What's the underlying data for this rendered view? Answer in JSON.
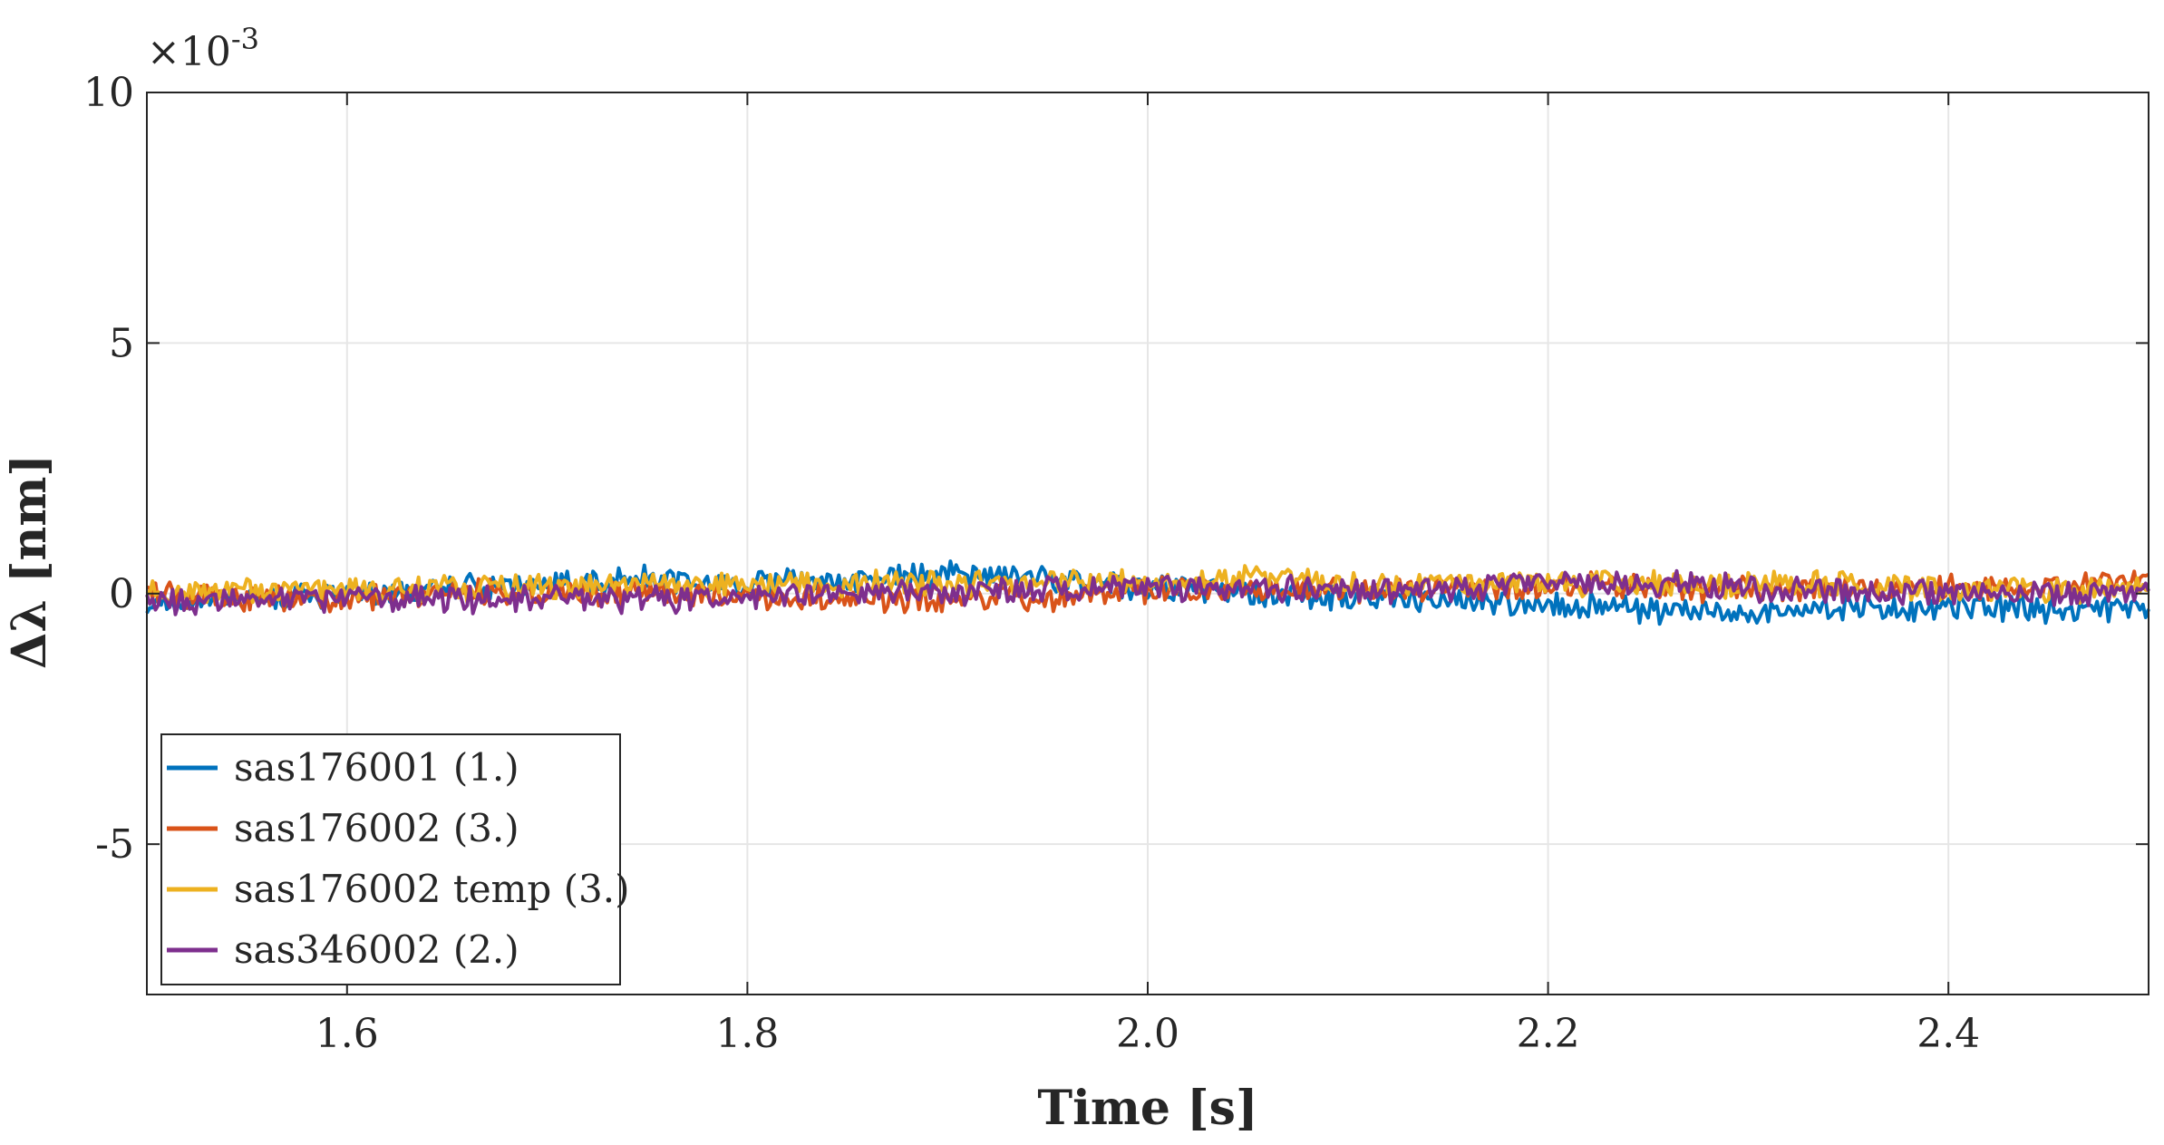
{
  "chart_data": {
    "type": "line",
    "title": "",
    "xlabel": "Time [s]",
    "ylabel": "Δλ [nm]",
    "xlim": [
      1.5,
      2.5
    ],
    "ylim": [
      -8,
      10
    ],
    "y_exponent_label": "×10",
    "y_exponent_power": "-3",
    "x_ticks": [
      1.6,
      1.8,
      2.0,
      2.2,
      2.4
    ],
    "x_tick_labels": [
      "1.6",
      "1.8",
      "2.0",
      "2.2",
      "2.4"
    ],
    "y_ticks": [
      -5,
      0,
      5,
      10
    ],
    "y_tick_labels": [
      "-5",
      "0",
      "5",
      "10"
    ],
    "grid": true,
    "legend_position": "bottom-left",
    "series": [
      {
        "name": "sas176001 (1.)",
        "color": "#0072BD",
        "x": [
          1.5,
          1.55,
          1.6,
          1.65,
          1.7,
          1.75,
          1.8,
          1.85,
          1.9,
          1.95,
          2.0,
          2.05,
          2.1,
          2.15,
          2.2,
          2.25,
          2.3,
          2.35,
          2.4,
          2.45,
          2.5
        ],
        "y": [
          -0.2,
          -0.1,
          0.0,
          0.1,
          0.2,
          0.3,
          0.2,
          0.3,
          0.4,
          0.3,
          0.1,
          0.0,
          -0.1,
          -0.1,
          -0.2,
          -0.3,
          -0.4,
          -0.3,
          -0.3,
          -0.3,
          -0.3
        ]
      },
      {
        "name": "sas176002 (3.)",
        "color": "#D95319",
        "x": [
          1.5,
          1.55,
          1.6,
          1.65,
          1.7,
          1.75,
          1.8,
          1.85,
          1.9,
          1.95,
          2.0,
          2.05,
          2.1,
          2.15,
          2.2,
          2.25,
          2.3,
          2.35,
          2.4,
          2.45,
          2.5
        ],
        "y": [
          0.0,
          -0.1,
          -0.1,
          0.0,
          0.0,
          0.0,
          -0.1,
          -0.1,
          -0.1,
          -0.1,
          0.1,
          0.1,
          0.1,
          0.1,
          0.2,
          0.1,
          0.1,
          0.1,
          0.1,
          0.2,
          0.2
        ]
      },
      {
        "name": "sas176002 temp (3.)",
        "color": "#EDB120",
        "x": [
          1.5,
          1.55,
          1.6,
          1.65,
          1.7,
          1.75,
          1.8,
          1.85,
          1.9,
          1.95,
          2.0,
          2.05,
          2.1,
          2.15,
          2.2,
          2.25,
          2.3,
          2.35,
          2.4,
          2.45,
          2.5
        ],
        "y": [
          0.0,
          0.0,
          0.1,
          0.1,
          0.1,
          0.2,
          0.2,
          0.2,
          0.2,
          0.2,
          0.2,
          0.3,
          0.2,
          0.2,
          0.2,
          0.2,
          0.2,
          0.2,
          0.1,
          0.1,
          0.1
        ]
      },
      {
        "name": "sas346002 (2.)",
        "color": "#7E2F8E",
        "x": [
          1.5,
          1.55,
          1.6,
          1.65,
          1.7,
          1.75,
          1.8,
          1.85,
          1.9,
          1.95,
          2.0,
          2.05,
          2.1,
          2.15,
          2.2,
          2.25,
          2.3,
          2.35,
          2.4,
          2.45,
          2.5
        ],
        "y": [
          -0.2,
          -0.1,
          -0.1,
          -0.1,
          -0.1,
          -0.1,
          -0.1,
          0.0,
          0.0,
          0.1,
          0.1,
          0.1,
          0.1,
          0.1,
          0.2,
          0.2,
          0.1,
          0.1,
          0.0,
          0.0,
          0.0
        ]
      }
    ]
  }
}
